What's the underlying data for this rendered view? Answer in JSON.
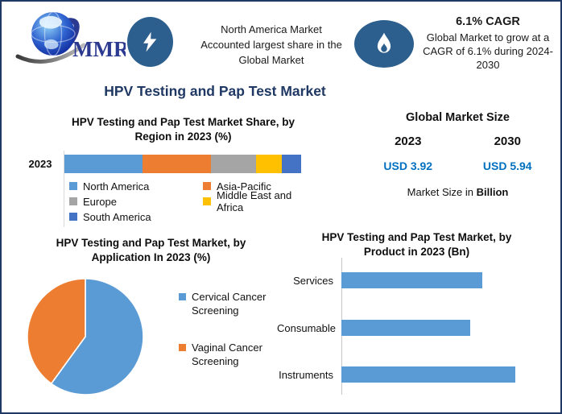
{
  "colors": {
    "border_navy": "#1F3864",
    "title_navy": "#1F3864",
    "icon_circle": "#2C5F8E",
    "usd_blue": "#0070C0",
    "chart_blue": "#5B9BD5",
    "orange": "#ED7D31",
    "gray": "#A5A5A5",
    "yellow": "#FFC000",
    "dark_blue": "#4472C4",
    "logo_blue": "#2B3990"
  },
  "header": {
    "logo_text": "MMR",
    "banner1": {
      "lines": [
        "North America Market",
        "Accounted largest share in the",
        "Global Market"
      ]
    },
    "banner2": {
      "title": "6.1% CAGR",
      "lines": [
        "Global Market to grow at a",
        "CAGR of 6.1% during 2024-",
        "2030"
      ]
    }
  },
  "main_title": "HPV Testing and Pap Test Market",
  "market_size_panel": {
    "title": "Global Market Size",
    "year_left": "2023",
    "year_right": "2030",
    "value_left": "USD 3.92",
    "value_right": "USD 5.94",
    "note_regular": "Market Size in",
    "note_bold": "Billion"
  },
  "chart_data": [
    {
      "type": "bar",
      "variant": "stacked-horizontal",
      "title": "HPV Testing and Pap Test Market Share, by Region in 2023 (%)",
      "title_lines": [
        "HPV Testing and Pap Test Market Share, by",
        "Region in 2023 (%)"
      ],
      "categories": [
        "2023"
      ],
      "series": [
        {
          "name": "North America",
          "values": [
            33
          ],
          "color": "#5B9BD5"
        },
        {
          "name": "Asia-Pacific",
          "values": [
            29
          ],
          "color": "#ED7D31"
        },
        {
          "name": "Europe",
          "values": [
            19
          ],
          "color": "#A5A5A5"
        },
        {
          "name": "Middle East and Africa",
          "values": [
            11
          ],
          "color": "#FFC000"
        },
        {
          "name": "South America",
          "values": [
            8
          ],
          "color": "#4472C4"
        }
      ],
      "xlim": [
        0,
        100
      ],
      "unit": "%",
      "legend_position": "bottom",
      "grid": false
    },
    {
      "type": "pie",
      "title": "HPV Testing and Pap Test Market, by Application In 2023 (%)",
      "title_lines": [
        "HPV Testing and Pap Test Market, by",
        "Application In 2023 (%)"
      ],
      "labels": [
        "Cervical Cancer Screening",
        "Vaginal Cancer Screening"
      ],
      "values": [
        60,
        40
      ],
      "colors": [
        "#5B9BD5",
        "#ED7D31"
      ],
      "start_angle_deg": 0,
      "direction": "clockwise",
      "unit": "%",
      "legend_position": "right"
    },
    {
      "type": "bar",
      "variant": "horizontal",
      "title": "HPV Testing and Pap Test Market, by Product in 2023 (Bn)",
      "title_lines": [
        "HPV Testing and Pap Test Market, by",
        "Product in 2023 (Bn)"
      ],
      "categories": [
        "Services",
        "Consumable",
        "Instruments"
      ],
      "values": [
        0.81,
        0.74,
        1.0
      ],
      "values_note": "axis unlabeled; values estimated relative to longest bar",
      "bar_color": "#5B9BD5",
      "unit": "Bn",
      "grid": false
    }
  ]
}
